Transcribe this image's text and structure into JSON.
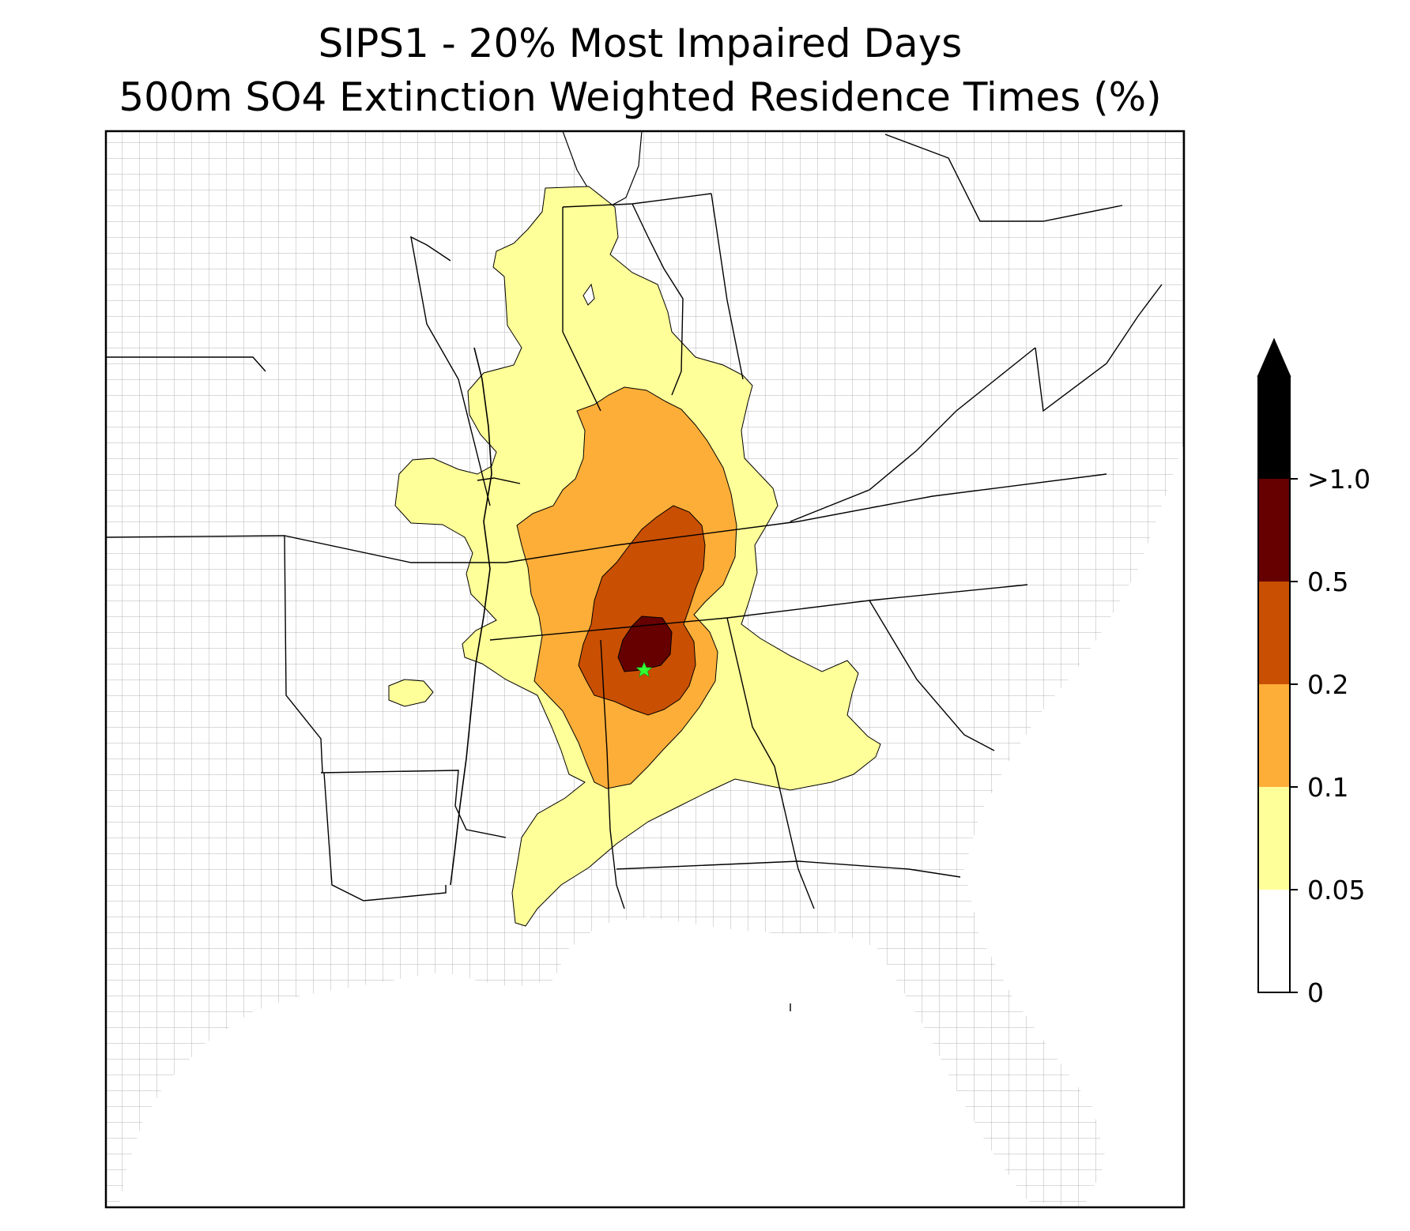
{
  "title": {
    "line1": "SIPS1 - 20% Most Impaired Days",
    "line2": "500m SO4 Extinction Weighted Residence Times (%)"
  },
  "colorbar": {
    "ticks": [
      "0",
      "0.05",
      "0.1",
      "0.2",
      "0.5",
      ">1.0"
    ],
    "bins": [
      {
        "range": "0-0.05",
        "color": "#ffffff"
      },
      {
        "range": "0.05-0.1",
        "color": "#ffff99"
      },
      {
        "range": "0.1-0.2",
        "color": "#fdae38"
      },
      {
        "range": "0.2-0.5",
        "color": "#c94f02"
      },
      {
        "range": "0.5-1.0",
        "color": "#660000"
      },
      {
        "range": ">1.0",
        "color": "#000000"
      }
    ],
    "extend": "max"
  },
  "map": {
    "region": "Southeastern United States",
    "county_line_color": "#a6a6a6",
    "state_line_color": "#000000",
    "site_marker": {
      "symbol": "star",
      "color": "#33ff33"
    }
  }
}
